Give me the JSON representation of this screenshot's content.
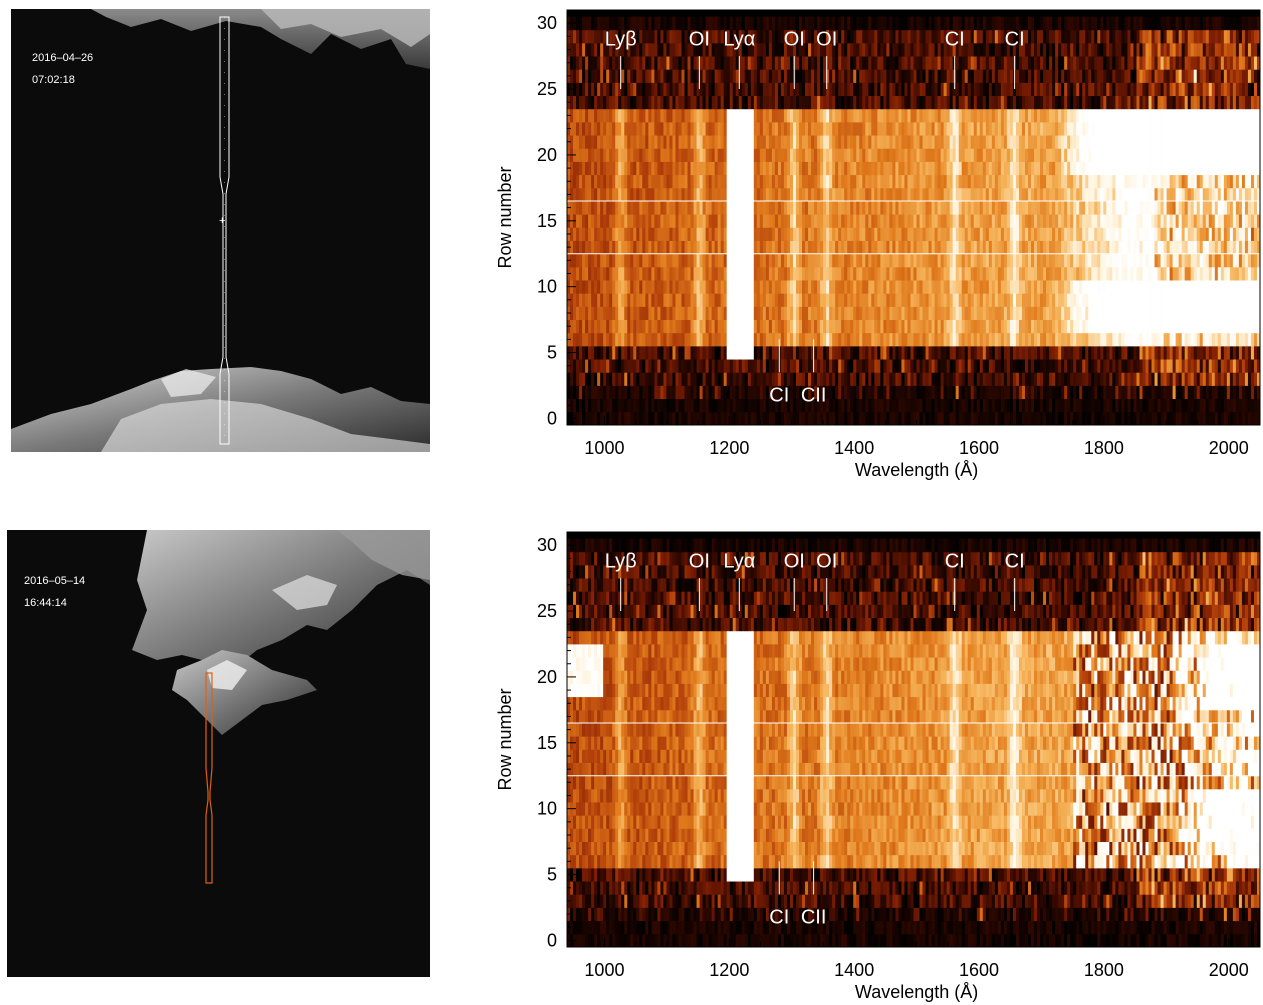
{
  "colors": {
    "spectrum_colormap": [
      "#000000",
      "#3a0a00",
      "#7a1d02",
      "#b3400a",
      "#e07a1c",
      "#f6b45a",
      "#fff2d8",
      "#ffffff"
    ],
    "slit_top": "#ffffff",
    "slit_bottom": "#e06010",
    "marker_lines": "#ffffff",
    "image_background": "#0b0b0b"
  },
  "panels": [
    {
      "context_image": {
        "date": "2016–04–26",
        "time": "07:02:18",
        "slit_color": "slit_top"
      }
    },
    {
      "context_image": {
        "date": "2016–05–14",
        "time": "16:44:14",
        "slit_color": "slit_bottom"
      }
    }
  ],
  "chart_data": [
    {
      "type": "heatmap",
      "xlabel": "Wavelength (Å)",
      "ylabel": "Row number",
      "xlim": [
        940,
        2050
      ],
      "ylim": [
        -0.5,
        31
      ],
      "xticks": [
        1000,
        1200,
        1400,
        1600,
        1800,
        2000
      ],
      "xtick_labels": [
        "1000",
        "1200",
        "1400",
        "1600",
        "1800",
        "2000"
      ],
      "yticks": [
        0,
        5,
        10,
        15,
        20,
        25,
        30
      ],
      "ytick_labels": [
        "0",
        "5",
        "10",
        "15",
        "20",
        "25",
        "30"
      ],
      "signal_rows": [
        6,
        23
      ],
      "lya_saturated_rows": [
        5,
        23
      ],
      "horizontal_markers_row": [
        12.5,
        16.5
      ],
      "bright_rows_longwave": [
        [
          6.5,
          10.5
        ],
        [
          18.5,
          23
        ]
      ],
      "longwave_saturation_start": 1720,
      "line_labels_top": [
        {
          "label": "Lyβ",
          "wavelength": 1026
        },
        {
          "label": "OI",
          "wavelength": 1152
        },
        {
          "label": "Lyα",
          "wavelength": 1216
        },
        {
          "label": "OI",
          "wavelength": 1304
        },
        {
          "label": "OI",
          "wavelength": 1356
        },
        {
          "label": "CI",
          "wavelength": 1561
        },
        {
          "label": "CI",
          "wavelength": 1657
        }
      ],
      "line_labels_bottom": [
        {
          "label": "CI",
          "wavelength": 1280
        },
        {
          "label": "CII",
          "wavelength": 1335
        }
      ]
    },
    {
      "type": "heatmap",
      "xlabel": "Wavelength (Å)",
      "ylabel": "Row number",
      "xlim": [
        940,
        2050
      ],
      "ylim": [
        -0.5,
        31
      ],
      "xticks": [
        1000,
        1200,
        1400,
        1600,
        1800,
        2000
      ],
      "xtick_labels": [
        "1000",
        "1200",
        "1400",
        "1600",
        "1800",
        "2000"
      ],
      "yticks": [
        0,
        5,
        10,
        15,
        20,
        25,
        30
      ],
      "ytick_labels": [
        "0",
        "5",
        "10",
        "15",
        "20",
        "25",
        "30"
      ],
      "signal_rows": [
        6,
        23
      ],
      "lya_saturated_rows": [
        5,
        23
      ],
      "horizontal_markers_row": [
        12.5,
        16.5
      ],
      "bright_rows_longwave": [
        [
          6.5,
          11.5
        ],
        [
          17.5,
          22
        ]
      ],
      "longwave_saturation_start": 1900,
      "line_labels_top": [
        {
          "label": "Lyβ",
          "wavelength": 1026
        },
        {
          "label": "OI",
          "wavelength": 1152
        },
        {
          "label": "Lyα",
          "wavelength": 1216
        },
        {
          "label": "OI",
          "wavelength": 1304
        },
        {
          "label": "OI",
          "wavelength": 1356
        },
        {
          "label": "CI",
          "wavelength": 1561
        },
        {
          "label": "CI",
          "wavelength": 1657
        }
      ],
      "line_labels_bottom": [
        {
          "label": "CI",
          "wavelength": 1280
        },
        {
          "label": "CII",
          "wavelength": 1335
        }
      ]
    }
  ]
}
